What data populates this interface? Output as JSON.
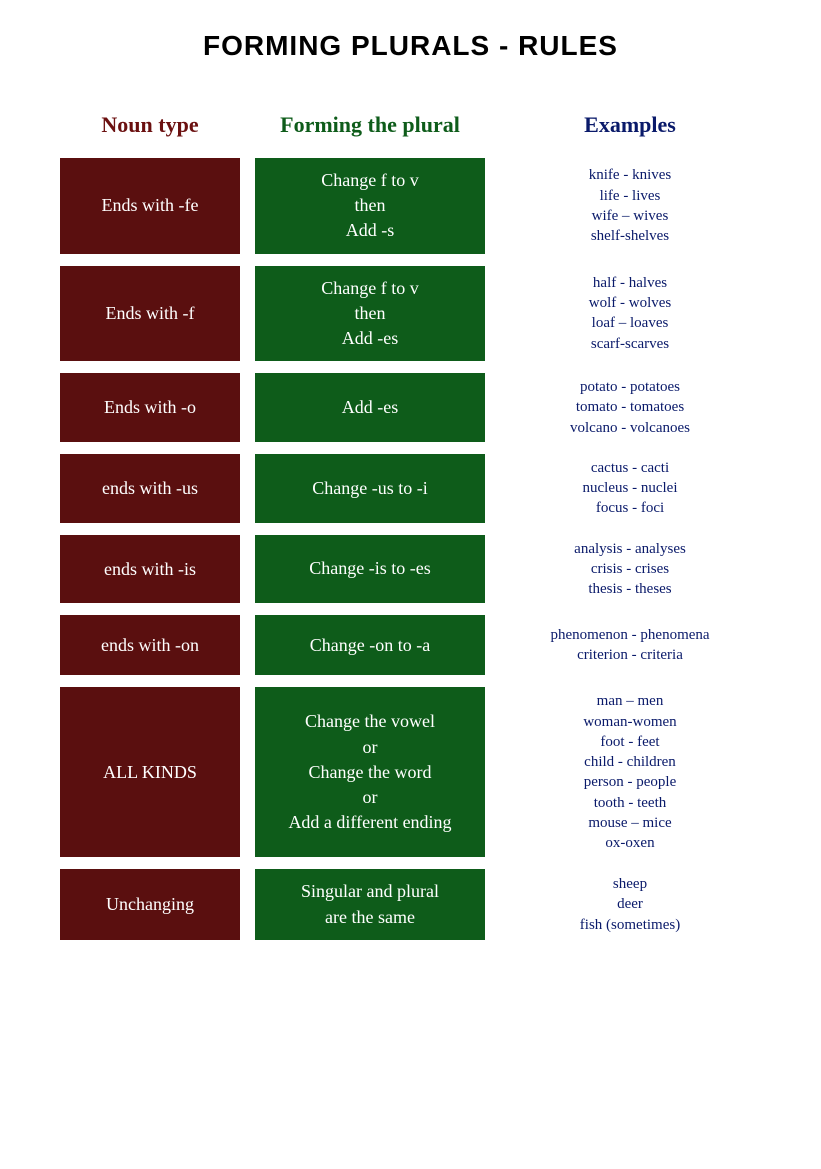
{
  "title": "FORMING PLURALS  - RULES",
  "colors": {
    "noun_bg": "#5a0f0f",
    "rule_bg": "#0e5c1a",
    "example_text": "#0a1a6a",
    "noun_header": "#6b1010",
    "rule_header": "#0e5c1a",
    "example_header": "#0a1a6a",
    "title_color": "#000000",
    "bg": "#ffffff"
  },
  "headers": {
    "noun": "Noun type",
    "rule": "Forming the plural",
    "example": "Examples"
  },
  "rows": [
    {
      "noun": "Ends with -fe",
      "rule": "Change f to v\nthen\nAdd -s",
      "examples": "knife - knives\nlife - lives\nwife – wives\nshelf-shelves"
    },
    {
      "noun": "Ends with -f",
      "rule": "Change f to v\nthen\nAdd -es",
      "examples": "half - halves\nwolf - wolves\nloaf – loaves\nscarf-scarves"
    },
    {
      "noun": "Ends with -o",
      "rule": "Add -es",
      "examples": "potato - potatoes\ntomato - tomatoes\nvolcano - volcanoes"
    },
    {
      "noun": "ends with -us",
      "rule": "Change -us to -i",
      "examples": "cactus - cacti\nnucleus - nuclei\nfocus - foci"
    },
    {
      "noun": "ends with -is",
      "rule": "Change -is to -es",
      "examples": "analysis - analyses\ncrisis - crises\nthesis - theses"
    },
    {
      "noun": "ends with -on",
      "rule": "Change -on to -a",
      "examples": "phenomenon - phenomena\ncriterion - criteria"
    },
    {
      "noun": "ALL KINDS",
      "rule": "Change the vowel\nor\nChange the word\nor\nAdd a different ending",
      "examples": "man – men\nwoman-women\nfoot - feet\nchild - children\nperson - people\ntooth - teeth\nmouse – mice\nox-oxen"
    },
    {
      "noun": "Unchanging",
      "rule": "Singular and plural\nare the same",
      "examples": "sheep\ndeer\nfish (sometimes)"
    }
  ]
}
